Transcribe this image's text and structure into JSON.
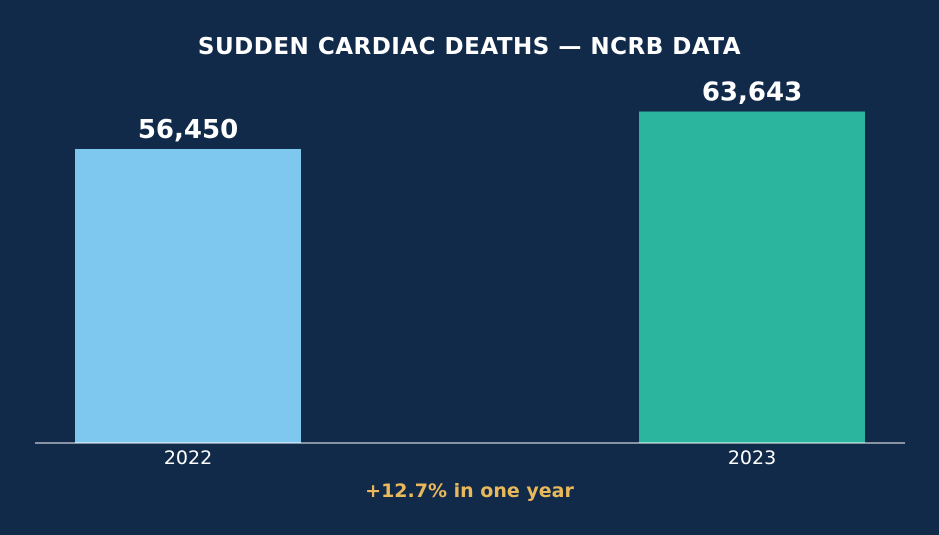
{
  "chart_data": {
    "type": "bar",
    "title": "SUDDEN CARDIAC DEATHS — NCRB DATA",
    "categories": [
      "2022",
      "2023"
    ],
    "values": [
      56450,
      63643
    ],
    "value_labels": [
      "56,450",
      "63,643"
    ],
    "xlabel": "",
    "ylabel": "",
    "ylim": [
      0,
      72000
    ],
    "grid": false,
    "legend": "none",
    "annotation": "+12.7% in one year",
    "colors": {
      "background": "#112a4a",
      "bars": [
        "#7ec8f0",
        "#2bb59e"
      ],
      "text": "#ffffff",
      "annotation": "#e8b85a",
      "axis": "#ffffff"
    }
  }
}
